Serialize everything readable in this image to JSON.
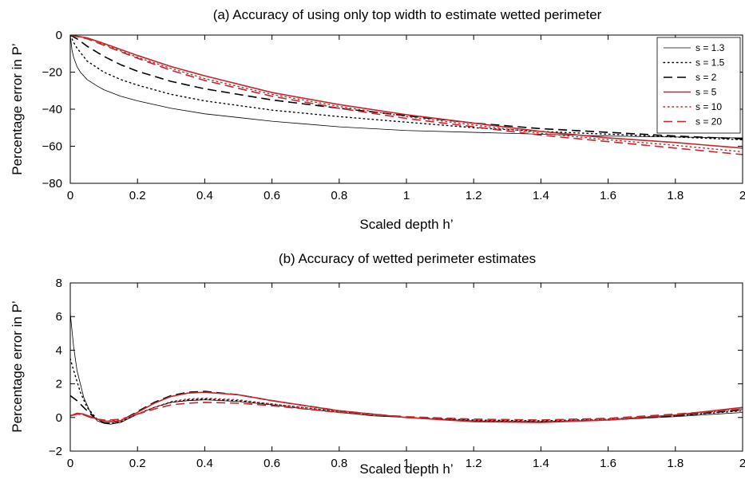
{
  "chart_data": [
    {
      "type": "line",
      "title": "(a) Accuracy of using only top width to estimate wetted perimeter",
      "xlabel": "Scaled depth h’",
      "ylabel": "Percentage error in P’",
      "xlim": [
        0,
        2
      ],
      "ylim": [
        -80,
        0
      ],
      "xticks": [
        0,
        0.2,
        0.4,
        0.6,
        0.8,
        1,
        1.2,
        1.4,
        1.6,
        1.8,
        2
      ],
      "xtick_labels": [
        "0",
        "0.2",
        "0.4",
        "0.6",
        "0.8",
        "1",
        "1.2",
        "1.4",
        "1.6",
        "1.8",
        "2"
      ],
      "yticks": [
        -80,
        -60,
        -40,
        -20,
        0
      ],
      "ytick_labels": [
        "−80",
        "−60",
        "−40",
        "−20",
        "0"
      ],
      "grid": false,
      "legend_position": "top-right",
      "series": [
        {
          "name": "s = 1.3",
          "color": "#000000",
          "style": "solid",
          "width": 0.8,
          "x": [
            0,
            0.005,
            0.01,
            0.02,
            0.03,
            0.05,
            0.08,
            0.1,
            0.15,
            0.2,
            0.3,
            0.4,
            0.5,
            0.6,
            0.8,
            1.0,
            1.2,
            1.4,
            1.6,
            1.8,
            2.0
          ],
          "y": [
            0,
            -8,
            -12,
            -17,
            -20,
            -24,
            -27.5,
            -29.5,
            -33,
            -35.5,
            -39.5,
            -42.5,
            -44.5,
            -46.5,
            -49.5,
            -51.5,
            -52.5,
            -53.5,
            -54.5,
            -55,
            -55.5
          ]
        },
        {
          "name": "s = 1.5",
          "color": "#000000",
          "style": "dotted",
          "width": 1.4,
          "x": [
            0,
            0.01,
            0.02,
            0.05,
            0.1,
            0.15,
            0.2,
            0.3,
            0.4,
            0.6,
            0.8,
            1.0,
            1.2,
            1.4,
            1.6,
            1.8,
            2.0
          ],
          "y": [
            0,
            -4,
            -7,
            -14,
            -20,
            -24,
            -27,
            -32,
            -35.5,
            -40.5,
            -44,
            -47,
            -50,
            -52,
            -53.5,
            -55,
            -56.5
          ]
        },
        {
          "name": "s = 2",
          "color": "#000000",
          "style": "dashed",
          "width": 1.6,
          "x": [
            0,
            0.02,
            0.05,
            0.1,
            0.15,
            0.2,
            0.3,
            0.4,
            0.6,
            0.8,
            1.0,
            1.2,
            1.4,
            1.6,
            1.8,
            2.0
          ],
          "y": [
            0,
            -2,
            -6,
            -11.5,
            -16,
            -19.5,
            -25,
            -29,
            -35,
            -39.5,
            -43.5,
            -47.5,
            -50.5,
            -52.5,
            -54.5,
            -56
          ]
        },
        {
          "name": "s = 5",
          "color": "#c0282d",
          "style": "solid",
          "width": 1.6,
          "x": [
            0,
            0.05,
            0.1,
            0.2,
            0.3,
            0.4,
            0.6,
            0.8,
            1.0,
            1.2,
            1.4,
            1.6,
            1.8,
            2.0
          ],
          "y": [
            0,
            -1.5,
            -4.5,
            -11,
            -17,
            -22,
            -31,
            -37.5,
            -43,
            -47.5,
            -52,
            -55.5,
            -58,
            -61
          ]
        },
        {
          "name": "s = 10",
          "color": "#c0282d",
          "style": "dotted",
          "width": 1.4,
          "x": [
            0,
            0.05,
            0.1,
            0.2,
            0.3,
            0.4,
            0.6,
            0.8,
            1.0,
            1.2,
            1.4,
            1.6,
            1.8,
            2.0
          ],
          "y": [
            0,
            -1.5,
            -5,
            -12,
            -18,
            -23.5,
            -32,
            -38.5,
            -44,
            -48.5,
            -53,
            -56.5,
            -59.5,
            -63
          ]
        },
        {
          "name": "s = 20",
          "color": "#c0282d",
          "style": "dashed",
          "width": 1.6,
          "x": [
            0,
            0.05,
            0.1,
            0.2,
            0.3,
            0.4,
            0.6,
            0.8,
            1.0,
            1.2,
            1.4,
            1.6,
            1.8,
            2.0
          ],
          "y": [
            0,
            -2,
            -5.5,
            -12.5,
            -19,
            -24.5,
            -33,
            -39.5,
            -45,
            -49.5,
            -54,
            -57.5,
            -61,
            -64.5
          ]
        }
      ]
    },
    {
      "type": "line",
      "title": "(b) Accuracy of wetted perimeter estimates",
      "xlabel": "Scaled depth h’",
      "ylabel": "Percentage error in P’",
      "xlim": [
        0,
        2
      ],
      "ylim": [
        -2,
        8
      ],
      "xticks": [
        0,
        0.2,
        0.4,
        0.6,
        0.8,
        1,
        1.2,
        1.4,
        1.6,
        1.8,
        2
      ],
      "xtick_labels": [
        "0",
        "0.2",
        "0.4",
        "0.6",
        "0.8",
        "1",
        "1.2",
        "1.4",
        "1.6",
        "1.8",
        "2"
      ],
      "yticks": [
        -2,
        0,
        2,
        4,
        6,
        8
      ],
      "ytick_labels": [
        "−2",
        "0",
        "2",
        "4",
        "6",
        "8"
      ],
      "grid": false,
      "series": [
        {
          "name": "s = 1.3",
          "color": "#000000",
          "style": "solid",
          "width": 0.8,
          "x": [
            0,
            0.01,
            0.02,
            0.04,
            0.06,
            0.08,
            0.1,
            0.12,
            0.15,
            0.2,
            0.25,
            0.3,
            0.35,
            0.4,
            0.5,
            0.6,
            0.7,
            0.8,
            0.9,
            1.0,
            1.2,
            1.4,
            1.6,
            1.8,
            2.0
          ],
          "y": [
            6.2,
            4.2,
            2.8,
            1.2,
            0.3,
            -0.2,
            -0.35,
            -0.4,
            -0.3,
            0.2,
            0.6,
            0.9,
            1.0,
            1.05,
            0.95,
            0.75,
            0.5,
            0.3,
            0.1,
            0.0,
            -0.2,
            -0.25,
            -0.15,
            0.05,
            0.3
          ]
        },
        {
          "name": "s = 1.5",
          "color": "#000000",
          "style": "dotted",
          "width": 1.4,
          "x": [
            0,
            0.01,
            0.03,
            0.05,
            0.08,
            0.1,
            0.12,
            0.15,
            0.2,
            0.25,
            0.3,
            0.35,
            0.4,
            0.5,
            0.6,
            0.8,
            1.0,
            1.2,
            1.4,
            1.6,
            1.8,
            2.0
          ],
          "y": [
            3.5,
            2.8,
            1.5,
            0.6,
            -0.1,
            -0.3,
            -0.35,
            -0.25,
            0.2,
            0.6,
            0.9,
            1.05,
            1.1,
            1.0,
            0.8,
            0.35,
            0.0,
            -0.15,
            -0.2,
            -0.1,
            0.1,
            0.4
          ]
        },
        {
          "name": "s = 2",
          "color": "#000000",
          "style": "dashed",
          "width": 1.6,
          "x": [
            0,
            0.02,
            0.04,
            0.06,
            0.08,
            0.1,
            0.12,
            0.15,
            0.2,
            0.25,
            0.3,
            0.35,
            0.4,
            0.5,
            0.6,
            0.8,
            1.0,
            1.2,
            1.4,
            1.6,
            1.8,
            2.0
          ],
          "y": [
            1.3,
            1.0,
            0.6,
            0.2,
            -0.15,
            -0.3,
            -0.35,
            -0.2,
            0.35,
            0.9,
            1.3,
            1.5,
            1.55,
            1.35,
            1.0,
            0.4,
            0.0,
            -0.2,
            -0.25,
            -0.15,
            0.1,
            0.45
          ]
        },
        {
          "name": "s = 5",
          "color": "#c0282d",
          "style": "solid",
          "width": 1.6,
          "x": [
            0,
            0.02,
            0.04,
            0.06,
            0.08,
            0.1,
            0.12,
            0.15,
            0.2,
            0.25,
            0.3,
            0.35,
            0.4,
            0.5,
            0.6,
            0.8,
            1.0,
            1.2,
            1.4,
            1.6,
            1.8,
            2.0
          ],
          "y": [
            0.1,
            0.25,
            0.2,
            0.05,
            -0.1,
            -0.2,
            -0.25,
            -0.2,
            0.3,
            0.85,
            1.25,
            1.45,
            1.5,
            1.35,
            1.0,
            0.4,
            0.0,
            -0.25,
            -0.3,
            -0.15,
            0.15,
            0.6
          ]
        },
        {
          "name": "s = 10",
          "color": "#c0282d",
          "style": "dotted",
          "width": 1.4,
          "x": [
            0,
            0.02,
            0.04,
            0.06,
            0.08,
            0.1,
            0.12,
            0.15,
            0.2,
            0.25,
            0.3,
            0.35,
            0.4,
            0.5,
            0.6,
            0.8,
            1.0,
            1.2,
            1.4,
            1.6,
            1.8,
            2.0
          ],
          "y": [
            0.1,
            0.2,
            0.15,
            0.0,
            -0.1,
            -0.2,
            -0.2,
            -0.15,
            0.2,
            0.6,
            0.95,
            1.1,
            1.15,
            1.05,
            0.8,
            0.35,
            0.0,
            -0.2,
            -0.25,
            -0.1,
            0.15,
            0.5
          ]
        },
        {
          "name": "s = 20",
          "color": "#c0282d",
          "style": "dashed",
          "width": 1.6,
          "x": [
            0,
            0.02,
            0.04,
            0.06,
            0.08,
            0.1,
            0.12,
            0.15,
            0.2,
            0.25,
            0.3,
            0.35,
            0.4,
            0.5,
            0.6,
            0.8,
            1.0,
            1.2,
            1.4,
            1.6,
            1.8,
            2.0
          ],
          "y": [
            0.1,
            0.2,
            0.15,
            0.0,
            -0.1,
            -0.15,
            -0.15,
            -0.1,
            0.2,
            0.5,
            0.75,
            0.85,
            0.9,
            0.85,
            0.7,
            0.3,
            0.05,
            -0.1,
            -0.15,
            -0.05,
            0.2,
            0.5
          ]
        }
      ]
    }
  ]
}
